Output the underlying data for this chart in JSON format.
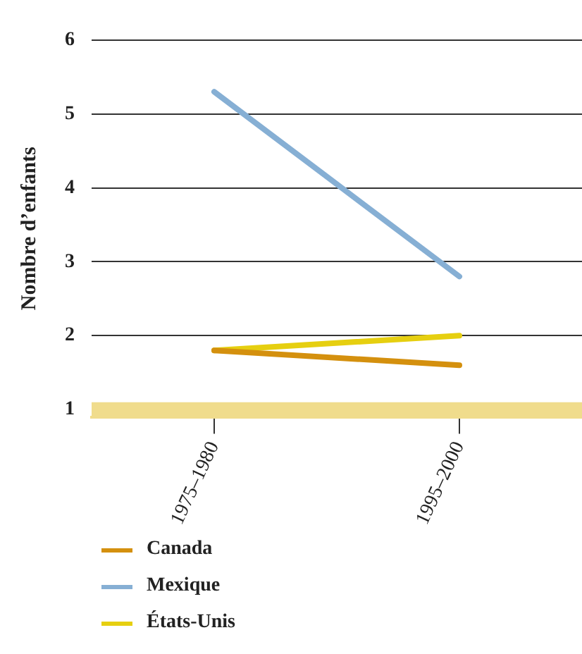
{
  "chart_data": {
    "type": "line",
    "ylabel": "Nombre d’enfants",
    "categories": [
      "1975–1980",
      "1995–2000"
    ],
    "series": [
      {
        "name": "Canada",
        "color": "#d4900e",
        "values": [
          1.8,
          1.6
        ]
      },
      {
        "name": "Mexique",
        "color": "#86afd4",
        "values": [
          5.3,
          2.8
        ]
      },
      {
        "name": "États-Unis",
        "color": "#e6cf10",
        "values": [
          1.8,
          2.0
        ]
      }
    ],
    "ylim": [
      0.9,
      6
    ],
    "yticks": [
      1,
      2,
      3,
      4,
      5,
      6
    ],
    "grid": "y",
    "legend": "bottom",
    "marker": "none",
    "line_style": "solid",
    "bands": [
      {
        "axis": "y",
        "from": 0.9,
        "to": 1.1,
        "color": "#f0dc8c"
      }
    ]
  }
}
